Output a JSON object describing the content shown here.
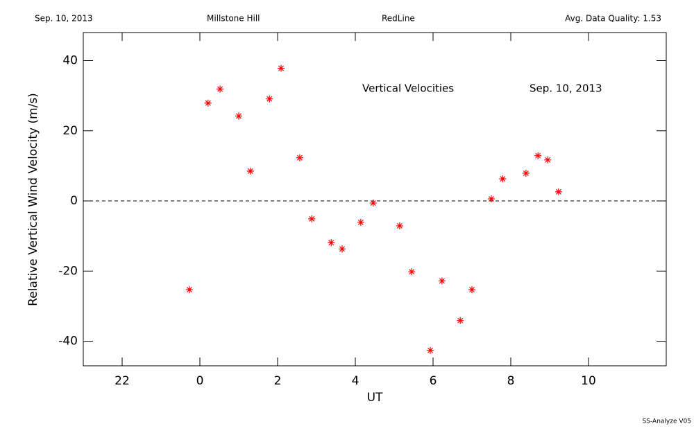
{
  "header": {
    "date": "Sep. 10, 2013",
    "site": "Millstone Hill",
    "instrument": "RedLine",
    "quality": "Avg. Data Quality: 1.53"
  },
  "footer": "SS-Analyze V05",
  "chart_data": {
    "type": "scatter",
    "title": "Vertical Velocities",
    "subtitle": "Sep. 10, 2013",
    "x_label": "UT",
    "y_label": "Relative Vertical Wind Velocity (m/s)",
    "x": [
      -0.27,
      0.21,
      0.52,
      1.0,
      1.3,
      1.79,
      2.09,
      2.57,
      2.88,
      3.38,
      3.66,
      4.14,
      4.46,
      5.14,
      5.45,
      5.93,
      6.23,
      6.7,
      7.0,
      7.5,
      7.79,
      8.39,
      8.7,
      8.95,
      9.23
    ],
    "values": [
      -25.3,
      27.9,
      31.9,
      24.2,
      8.5,
      29.1,
      37.8,
      12.3,
      -5.1,
      -11.9,
      -13.7,
      -6.1,
      -0.6,
      -7.1,
      -20.2,
      -42.6,
      -22.8,
      -34.1,
      -25.3,
      0.6,
      6.3,
      7.9,
      12.9,
      11.7,
      2.6
    ],
    "color": "#ff0000",
    "xlim": [
      -3,
      12
    ],
    "xticks": [
      {
        "value": -2,
        "label": "22"
      },
      0,
      2,
      4,
      6,
      8,
      10
    ],
    "ylim": [
      -47,
      48
    ],
    "yticks": [
      -40,
      -20,
      0,
      20,
      40
    ],
    "zero_line": true
  }
}
